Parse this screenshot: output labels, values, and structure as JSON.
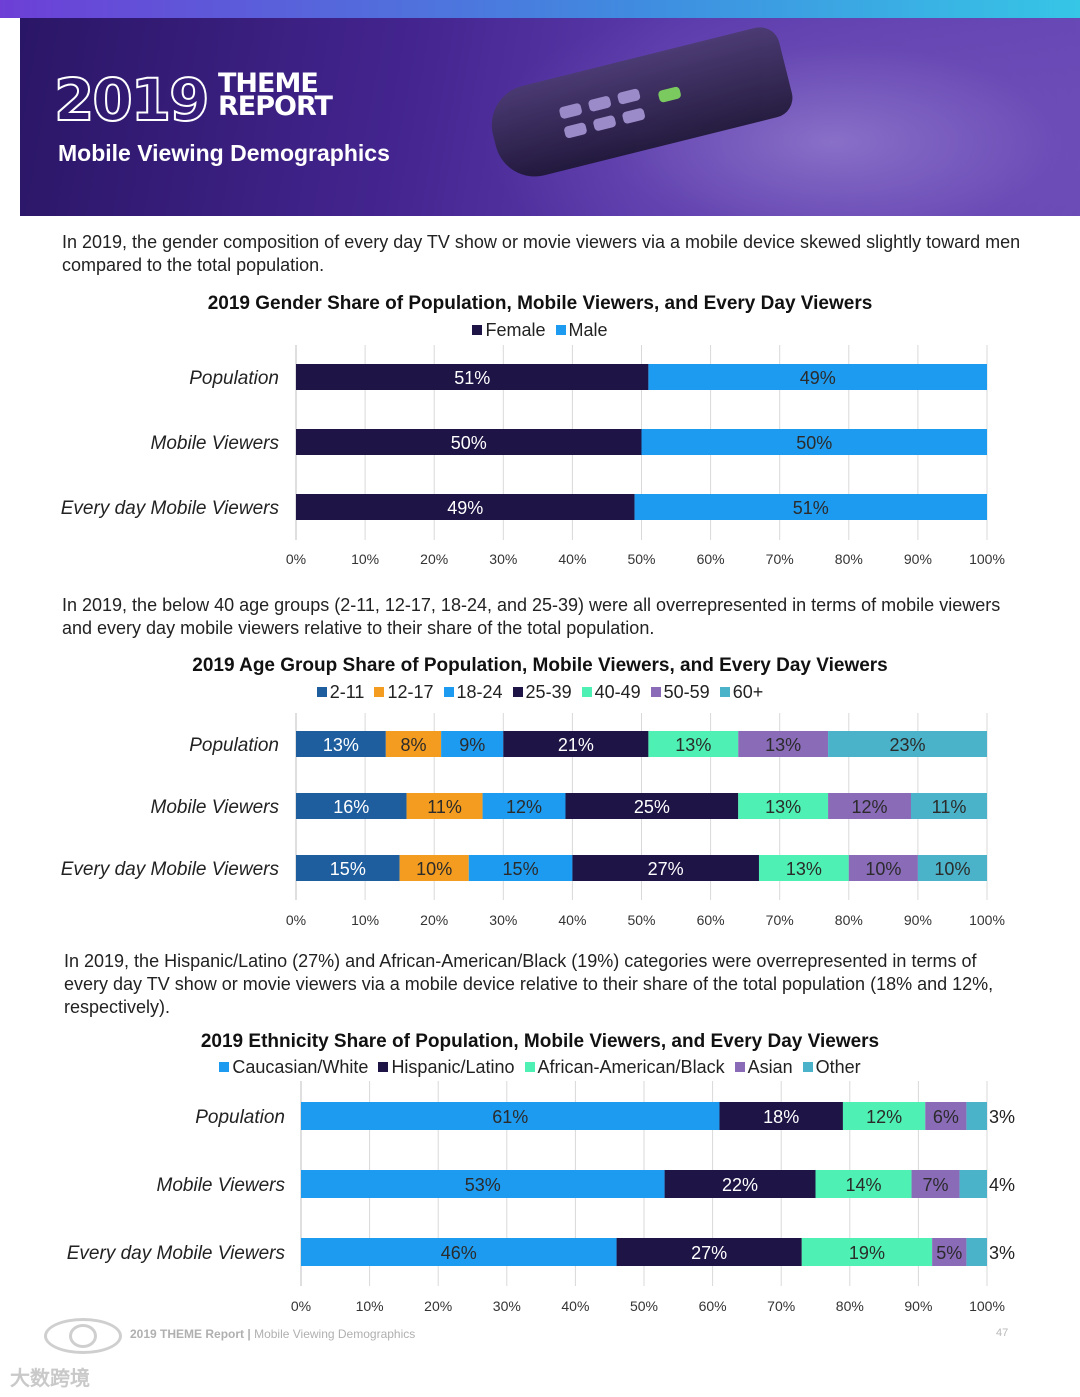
{
  "header": {
    "year": "2019",
    "theme_line1": "THEME",
    "theme_line2": "REPORT",
    "subtitle": "Mobile Viewing Demographics"
  },
  "para1": "In 2019, the gender composition of every day TV show or movie viewers via a mobile device skewed slightly toward men compared to the total population.",
  "para2": "In 2019, the below 40 age groups (2-11, 12-17, 18-24, and 25-39) were all overrepresented in terms of mobile viewers and every day mobile viewers relative to their share of the total population.",
  "para3": "In 2019, the Hispanic/Latino (27%) and African-American/Black (19%) categories were overrepresented in terms of every day TV show or movie viewers via a mobile device relative to their share of the total population (18% and 12%, respectively).",
  "chart_data": [
    {
      "type": "bar",
      "orientation": "horizontal",
      "stacked": true,
      "title": "2019 Gender Share of Population, Mobile Viewers, and Every Day Viewers",
      "categories": [
        "Population",
        "Mobile Viewers",
        "Every day Mobile Viewers"
      ],
      "series": [
        {
          "name": "Female",
          "color": "#1e1446",
          "values": [
            51,
            50,
            49
          ]
        },
        {
          "name": "Male",
          "color": "#1d9bf0",
          "values": [
            49,
            50,
            51
          ]
        }
      ],
      "data_labels": [
        [
          "51%",
          "49%"
        ],
        [
          "50%",
          "50%"
        ],
        [
          "49%",
          "51%"
        ]
      ],
      "xlim": [
        0,
        100
      ],
      "xticks": [
        "0%",
        "10%",
        "20%",
        "30%",
        "40%",
        "50%",
        "60%",
        "70%",
        "80%",
        "90%",
        "100%"
      ],
      "legend": "top-center",
      "grid": true
    },
    {
      "type": "bar",
      "orientation": "horizontal",
      "stacked": true,
      "title": "2019 Age Group Share of Population, Mobile Viewers, and Every Day Viewers",
      "categories": [
        "Population",
        "Mobile Viewers",
        "Every day Mobile Viewers"
      ],
      "series": [
        {
          "name": "2-11",
          "color": "#1f5e9e",
          "values": [
            13,
            16,
            15
          ]
        },
        {
          "name": "12-17",
          "color": "#f39c1f",
          "values": [
            8,
            11,
            10
          ]
        },
        {
          "name": "18-24",
          "color": "#1d9bf0",
          "values": [
            9,
            12,
            15
          ]
        },
        {
          "name": "25-39",
          "color": "#1e1446",
          "values": [
            21,
            25,
            27
          ]
        },
        {
          "name": "40-49",
          "color": "#4ef0b3",
          "values": [
            13,
            13,
            13
          ]
        },
        {
          "name": "50-59",
          "color": "#8a6bb8",
          "values": [
            13,
            12,
            10
          ]
        },
        {
          "name": "60+",
          "color": "#4bb3c9",
          "values": [
            23,
            11,
            10
          ]
        }
      ],
      "data_labels": [
        [
          "13%",
          "8%",
          "9%",
          "21%",
          "13%",
          "13%",
          "23%"
        ],
        [
          "16%",
          "11%",
          "12%",
          "25%",
          "13%",
          "12%",
          "11%"
        ],
        [
          "15%",
          "10%",
          "15%",
          "27%",
          "13%",
          "10%",
          "10%"
        ]
      ],
      "xlim": [
        0,
        100
      ],
      "xticks": [
        "0%",
        "10%",
        "20%",
        "30%",
        "40%",
        "50%",
        "60%",
        "70%",
        "80%",
        "90%",
        "100%"
      ],
      "legend": "top-center",
      "grid": true
    },
    {
      "type": "bar",
      "orientation": "horizontal",
      "stacked": true,
      "title": "2019 Ethnicity Share of Population, Mobile Viewers, and Every Day Viewers",
      "categories": [
        "Population",
        "Mobile Viewers",
        "Every day Mobile Viewers"
      ],
      "series": [
        {
          "name": "Caucasian/White",
          "color": "#1d9bf0",
          "values": [
            61,
            53,
            46
          ]
        },
        {
          "name": "Hispanic/Latino",
          "color": "#1e1446",
          "values": [
            18,
            22,
            27
          ]
        },
        {
          "name": "African-American/Black",
          "color": "#4ef0b3",
          "values": [
            12,
            14,
            19
          ]
        },
        {
          "name": "Asian",
          "color": "#8a6bb8",
          "values": [
            6,
            7,
            5
          ]
        },
        {
          "name": "Other",
          "color": "#4bb3c9",
          "values": [
            3,
            4,
            3
          ]
        }
      ],
      "data_labels": [
        [
          "61%",
          "18%",
          "12%",
          "6%",
          "3%"
        ],
        [
          "53%",
          "22%",
          "14%",
          "7%",
          "4%"
        ],
        [
          "46%",
          "27%",
          "19%",
          "5%",
          "3%"
        ]
      ],
      "xlim": [
        0,
        100
      ],
      "xticks": [
        "0%",
        "10%",
        "20%",
        "30%",
        "40%",
        "50%",
        "60%",
        "70%",
        "80%",
        "90%",
        "100%"
      ],
      "legend": "top-center",
      "grid": true
    }
  ],
  "footer": {
    "report": "2019 THEME Report |",
    "section": " Mobile Viewing Demographics",
    "page": "47"
  },
  "watermark": "大数跨境"
}
